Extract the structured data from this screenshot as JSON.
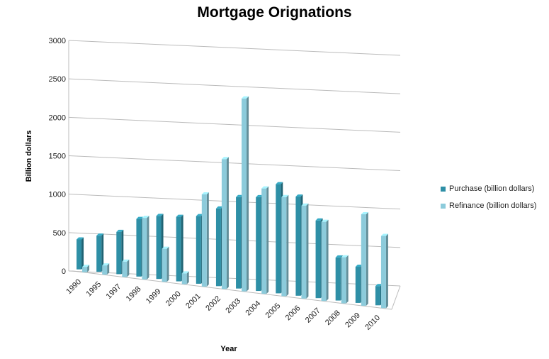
{
  "chart_data": {
    "type": "bar",
    "title": "Mortgage Orignations",
    "xlabel": "Year",
    "ylabel": "Billion dollars",
    "ylim": [
      0,
      3000
    ],
    "yticks": [
      "0",
      "500",
      "1000",
      "1500",
      "2000",
      "2500",
      "3000"
    ],
    "categories": [
      "1990",
      "1995",
      "1997",
      "1998",
      "1999",
      "2000",
      "2001",
      "2002",
      "2003",
      "2004",
      "2005",
      "2006",
      "2007",
      "2008",
      "2009",
      "2010"
    ],
    "series": [
      {
        "name": "Purchase (billion dollars)",
        "color": "#2e8fa6",
        "values": [
          390,
          470,
          550,
          750,
          820,
          840,
          880,
          1010,
          1190,
          1220,
          1420,
          1290,
          1010,
          560,
          470,
          250
        ]
      },
      {
        "name": "Refinance (billion dollars)",
        "color": "#8ccbdb",
        "values": [
          70,
          120,
          200,
          800,
          430,
          140,
          1200,
          1690,
          2510,
          1370,
          1290,
          1210,
          1030,
          600,
          1190,
          940
        ]
      }
    ],
    "grid": true,
    "legend_position": "right"
  }
}
